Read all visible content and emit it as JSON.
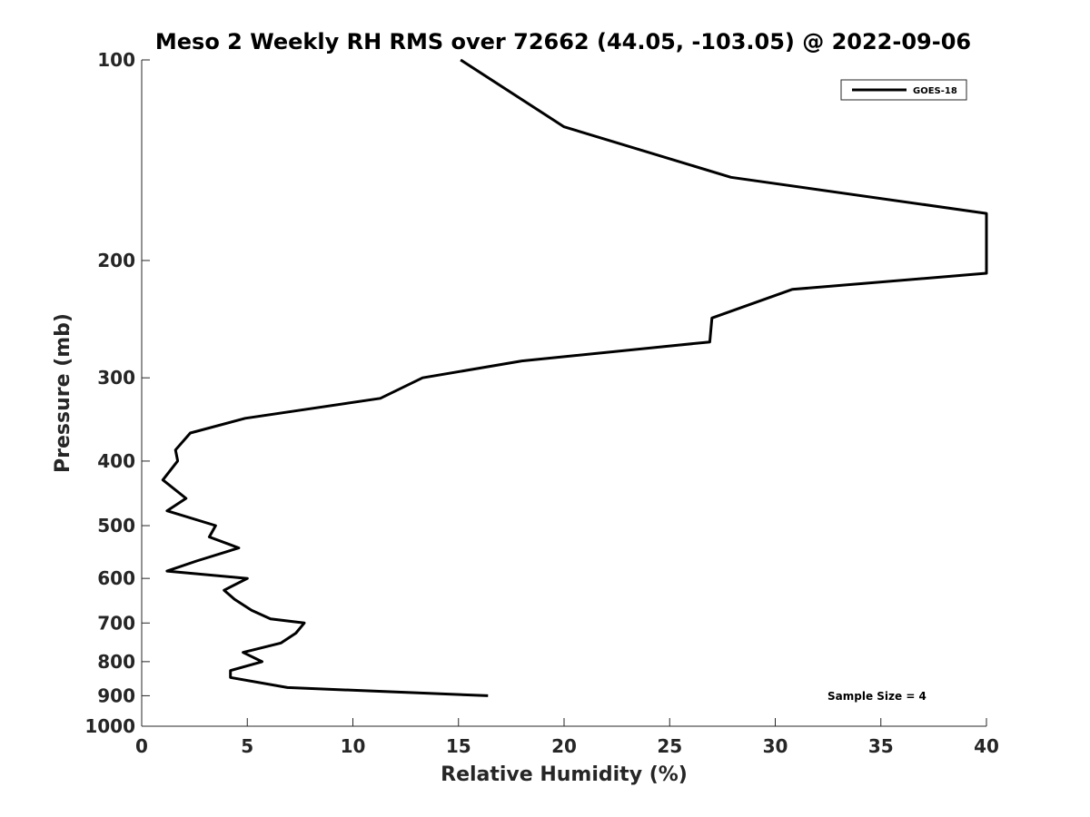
{
  "chart_data": {
    "type": "line",
    "title": "Meso 2 Weekly RH RMS over 72662 (44.05, -103.05) @ 2022-09-06",
    "xlabel": "Relative Humidity (%)",
    "ylabel": "Pressure (mb)",
    "xlim": [
      0,
      40
    ],
    "ylim": [
      100,
      1000
    ],
    "y_scale": "log",
    "y_direction": "reversed",
    "grid": false,
    "legend_position": "top-right",
    "x_ticks": [
      "0",
      "5",
      "10",
      "15",
      "20",
      "25",
      "30",
      "35",
      "40"
    ],
    "y_ticks": [
      "100",
      "200",
      "300",
      "400",
      "500",
      "600",
      "700",
      "800",
      "900",
      "1000"
    ],
    "annotation": "Sample Size = 4",
    "series": [
      {
        "name": "GOES-18",
        "color": "#000000",
        "x": [
          15.1,
          20.0,
          27.9,
          40.0,
          40.0,
          30.8,
          27.0,
          26.9,
          18.0,
          13.3,
          11.3,
          4.9,
          2.3,
          1.6,
          1.7,
          1.7,
          1.0,
          2.1,
          1.2,
          3.5,
          3.2,
          4.6,
          2.6,
          1.2,
          5.0,
          3.9,
          4.4,
          5.2,
          6.1,
          7.7,
          7.3,
          6.6,
          4.8,
          5.7,
          4.2,
          4.2,
          6.9,
          16.4
        ],
        "y": [
          100,
          126,
          150,
          170,
          209,
          221,
          244,
          265,
          283,
          300,
          322,
          345,
          363,
          385,
          399,
          400,
          427,
          455,
          475,
          500,
          520,
          540,
          565,
          585,
          600,
          625,
          645,
          670,
          690,
          700,
          725,
          750,
          775,
          800,
          825,
          845,
          875,
          900
        ]
      }
    ]
  }
}
